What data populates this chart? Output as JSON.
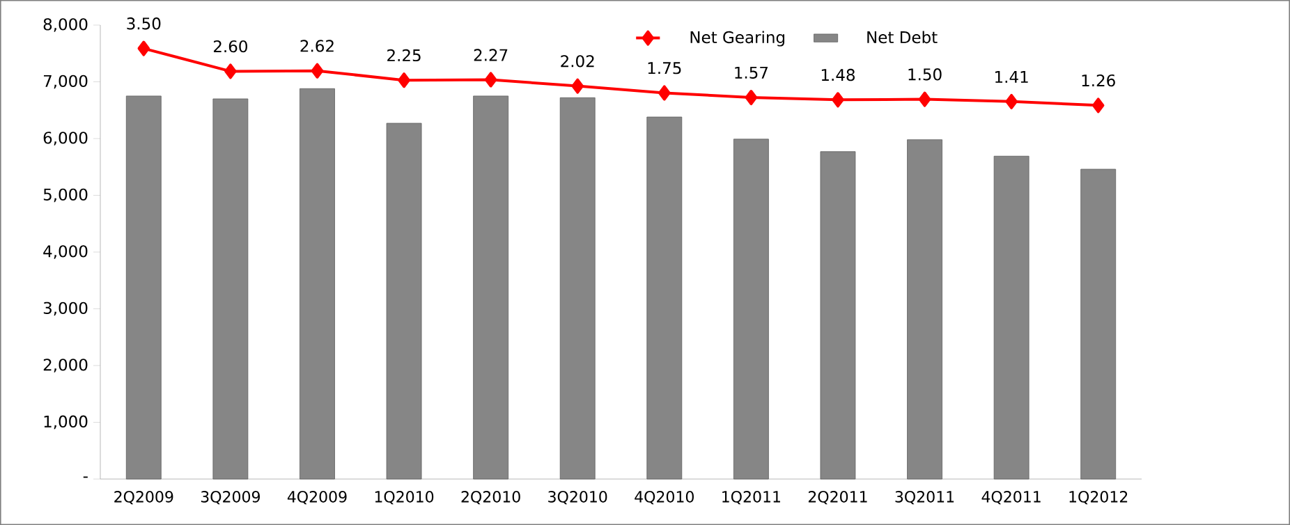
{
  "chart_data": {
    "type": "bar",
    "categories": [
      "2Q2009",
      "3Q2009",
      "4Q2009",
      "1Q2010",
      "2Q2010",
      "3Q2010",
      "4Q2010",
      "1Q2011",
      "2Q2011",
      "3Q2011",
      "4Q2011",
      "1Q2012"
    ],
    "series": [
      {
        "name": "Net Debt",
        "color": "#868686",
        "values": [
          6750,
          6700,
          6880,
          6270,
          6750,
          6720,
          6380,
          5990,
          5770,
          5980,
          5690,
          5460
        ]
      },
      {
        "name": "Net Gearing",
        "type": "line",
        "axis": "y2",
        "color": "#ff0000",
        "marker": "diamond",
        "values": [
          3.5,
          2.6,
          2.62,
          2.25,
          2.27,
          2.02,
          1.75,
          1.57,
          1.48,
          1.5,
          1.41,
          1.26
        ],
        "value_labels": [
          "3.50",
          "2.60",
          "2.62",
          "2.25",
          "2.27",
          "2.02",
          "1.75",
          "1.57",
          "1.48",
          "1.50",
          "1.41",
          "1.26"
        ]
      }
    ],
    "ylim": [
      0,
      8000
    ],
    "yticks": [
      {
        "value": 0,
        "label": "-"
      },
      {
        "value": 1000,
        "label": "1,000"
      },
      {
        "value": 2000,
        "label": "2,000"
      },
      {
        "value": 3000,
        "label": "3,000"
      },
      {
        "value": 4000,
        "label": "4,000"
      },
      {
        "value": 5000,
        "label": "5,000"
      },
      {
        "value": 6000,
        "label": "6,000"
      },
      {
        "value": 7000,
        "label": "7,000"
      },
      {
        "value": 8000,
        "label": "8,000"
      }
    ],
    "y2lim": [
      -13.44,
      4.42
    ],
    "grid": false,
    "legend": "top"
  }
}
